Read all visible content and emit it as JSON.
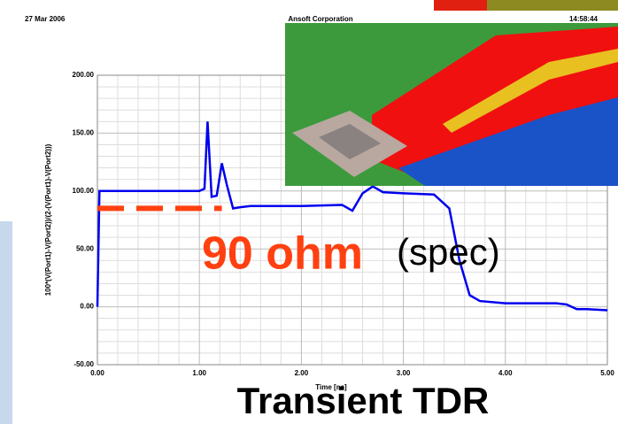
{
  "header": {
    "date": "27 Mar 2006",
    "company": "Ansoft Corporation",
    "time": "14:58:44"
  },
  "chart_data": {
    "type": "line",
    "x_label": "Time [ns]",
    "y_label": "100*(V(Port1)-V(Port2))/(2-(V(Port1)-V(Port2)))",
    "xlim": [
      0,
      5
    ],
    "ylim": [
      -50,
      200
    ],
    "xticks": [
      {
        "value": 0,
        "label": "0.00"
      },
      {
        "value": 1,
        "label": "1.00"
      },
      {
        "value": 2,
        "label": "2.00"
      },
      {
        "value": 3,
        "label": "3.00"
      },
      {
        "value": 4,
        "label": "4.00"
      },
      {
        "value": 5,
        "label": "5.00"
      }
    ],
    "yticks": [
      {
        "value": -50,
        "label": "-50.00"
      },
      {
        "value": 0,
        "label": "0.00"
      },
      {
        "value": 50,
        "label": "50.00"
      },
      {
        "value": 100,
        "label": "100.00"
      },
      {
        "value": 150,
        "label": "150.00"
      },
      {
        "value": 200,
        "label": "200.00"
      }
    ],
    "grid": true,
    "x": [
      0,
      0.02,
      0.5,
      1.0,
      1.05,
      1.08,
      1.12,
      1.17,
      1.22,
      1.27,
      1.33,
      1.4,
      1.5,
      2.0,
      2.4,
      2.5,
      2.6,
      2.7,
      2.8,
      3.0,
      3.3,
      3.45,
      3.55,
      3.65,
      3.75,
      4.0,
      4.5,
      4.6,
      4.7,
      4.8,
      5.0
    ],
    "series": [
      {
        "color": "#0000ee",
        "values": [
          0,
          100,
          100,
          100,
          102,
          160,
          95,
          96,
          124,
          105,
          85,
          86,
          87,
          87,
          88,
          83,
          98,
          104,
          99,
          98,
          97,
          85,
          40,
          10,
          5,
          3,
          3,
          2,
          -2,
          -2,
          -3
        ]
      }
    ],
    "reference_line": {
      "y": 85,
      "x": [
        0,
        1.22
      ],
      "color": "#ff4010"
    },
    "annotations": {
      "spec_value": "90 ohm",
      "spec": "(spec)",
      "caption": "Transient TDR"
    }
  }
}
